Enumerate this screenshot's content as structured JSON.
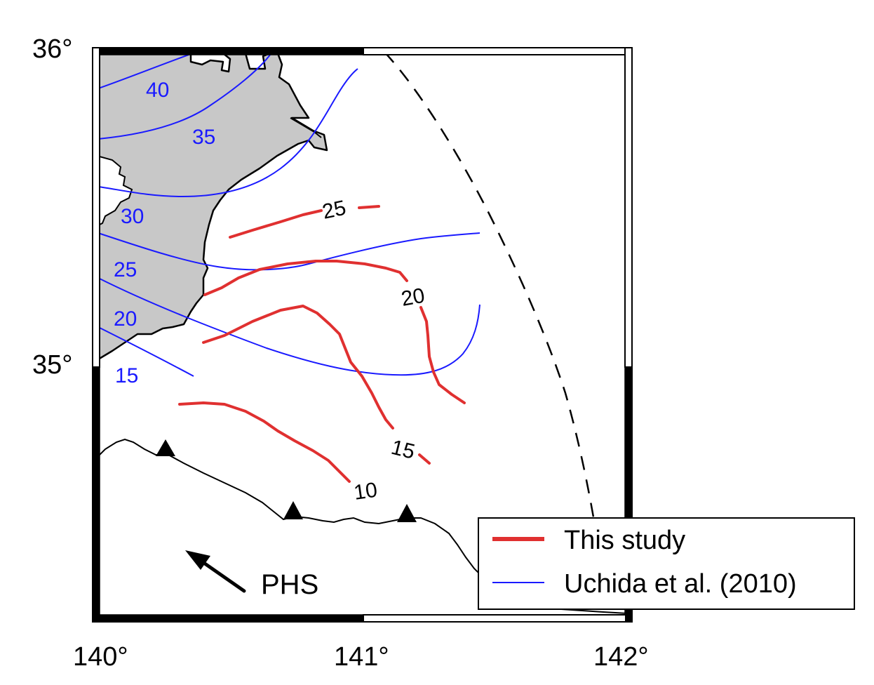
{
  "map": {
    "latitude_labels": [
      "36°",
      "35°"
    ],
    "longitude_labels": [
      "140°",
      "141°",
      "142°"
    ],
    "plate_label": "PHS"
  },
  "legend": {
    "items": [
      {
        "label": "This study",
        "color": "#e03030"
      },
      {
        "label": "Uchida et al. (2010)",
        "color": "#1a1aff"
      }
    ]
  },
  "contours": {
    "this_study": {
      "color": "#e03030",
      "labels": [
        "25",
        "20",
        "15",
        "10"
      ]
    },
    "uchida_2010": {
      "color": "#1a1aff",
      "labels": [
        "40",
        "35",
        "30",
        "25",
        "20",
        "15"
      ]
    }
  },
  "land_color": "#c8c8c8"
}
